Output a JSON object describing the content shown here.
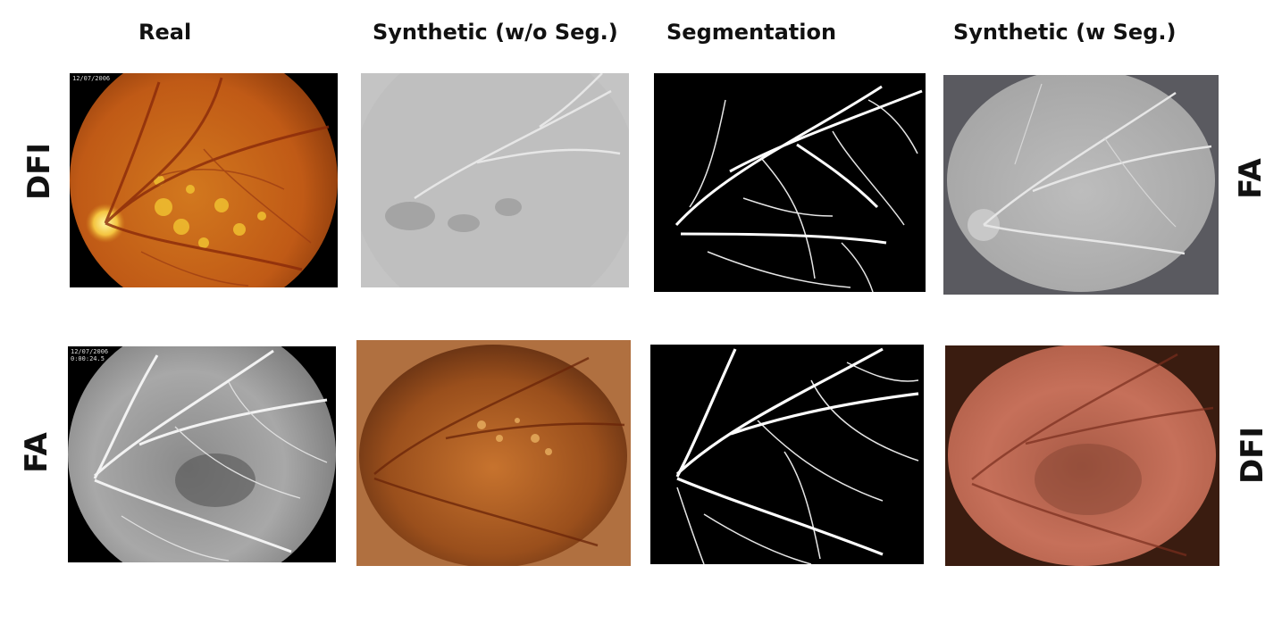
{
  "columns": {
    "real": "Real",
    "synthetic_wo_seg": "Synthetic (w/o Seg.)",
    "segmentation": "Segmentation",
    "synthetic_w_seg": "Synthetic (w Seg.)"
  },
  "rows": {
    "left": [
      "DFI",
      "FA"
    ],
    "right": [
      "FA",
      "DFI"
    ]
  },
  "stamps": {
    "dfi_real": "12/07/2006",
    "fa_real_date": "12/07/2006",
    "fa_real_time": "0:00:24.5"
  },
  "colors": {
    "fundus_orange": "#c8621a",
    "fa_gray": "#9a9a9a",
    "synthetic_dfi": "#c26a4f",
    "vessel_white": "#ffffff"
  }
}
